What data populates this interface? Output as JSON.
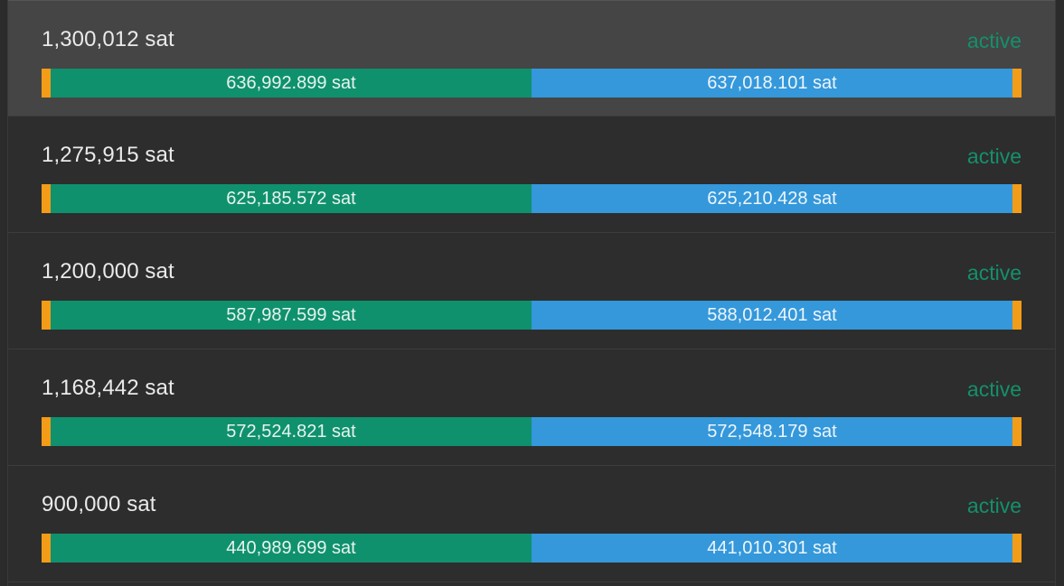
{
  "colors": {
    "active": "#14906b",
    "local_balance": "#0f916e",
    "remote_balance": "#3498db",
    "reserve": "#f39c17",
    "background": "#2d2d2d",
    "selected_row": "#454545"
  },
  "channels": [
    {
      "capacity": "1,300,012 sat",
      "status": "active",
      "local_balance": "636,992.899 sat",
      "remote_balance": "637,018.101 sat",
      "local_share": 0.49,
      "remote_share": 0.49,
      "selected": true
    },
    {
      "capacity": "1,275,915 sat",
      "status": "active",
      "local_balance": "625,185.572 sat",
      "remote_balance": "625,210.428 sat",
      "local_share": 0.49,
      "remote_share": 0.49,
      "selected": false
    },
    {
      "capacity": "1,200,000 sat",
      "status": "active",
      "local_balance": "587,987.599 sat",
      "remote_balance": "588,012.401 sat",
      "local_share": 0.49,
      "remote_share": 0.49,
      "selected": false
    },
    {
      "capacity": "1,168,442 sat",
      "status": "active",
      "local_balance": "572,524.821 sat",
      "remote_balance": "572,548.179 sat",
      "local_share": 0.49,
      "remote_share": 0.49,
      "selected": false
    },
    {
      "capacity": "900,000 sat",
      "status": "active",
      "local_balance": "440,989.699 sat",
      "remote_balance": "441,010.301 sat",
      "local_share": 0.49,
      "remote_share": 0.49,
      "selected": false
    }
  ]
}
